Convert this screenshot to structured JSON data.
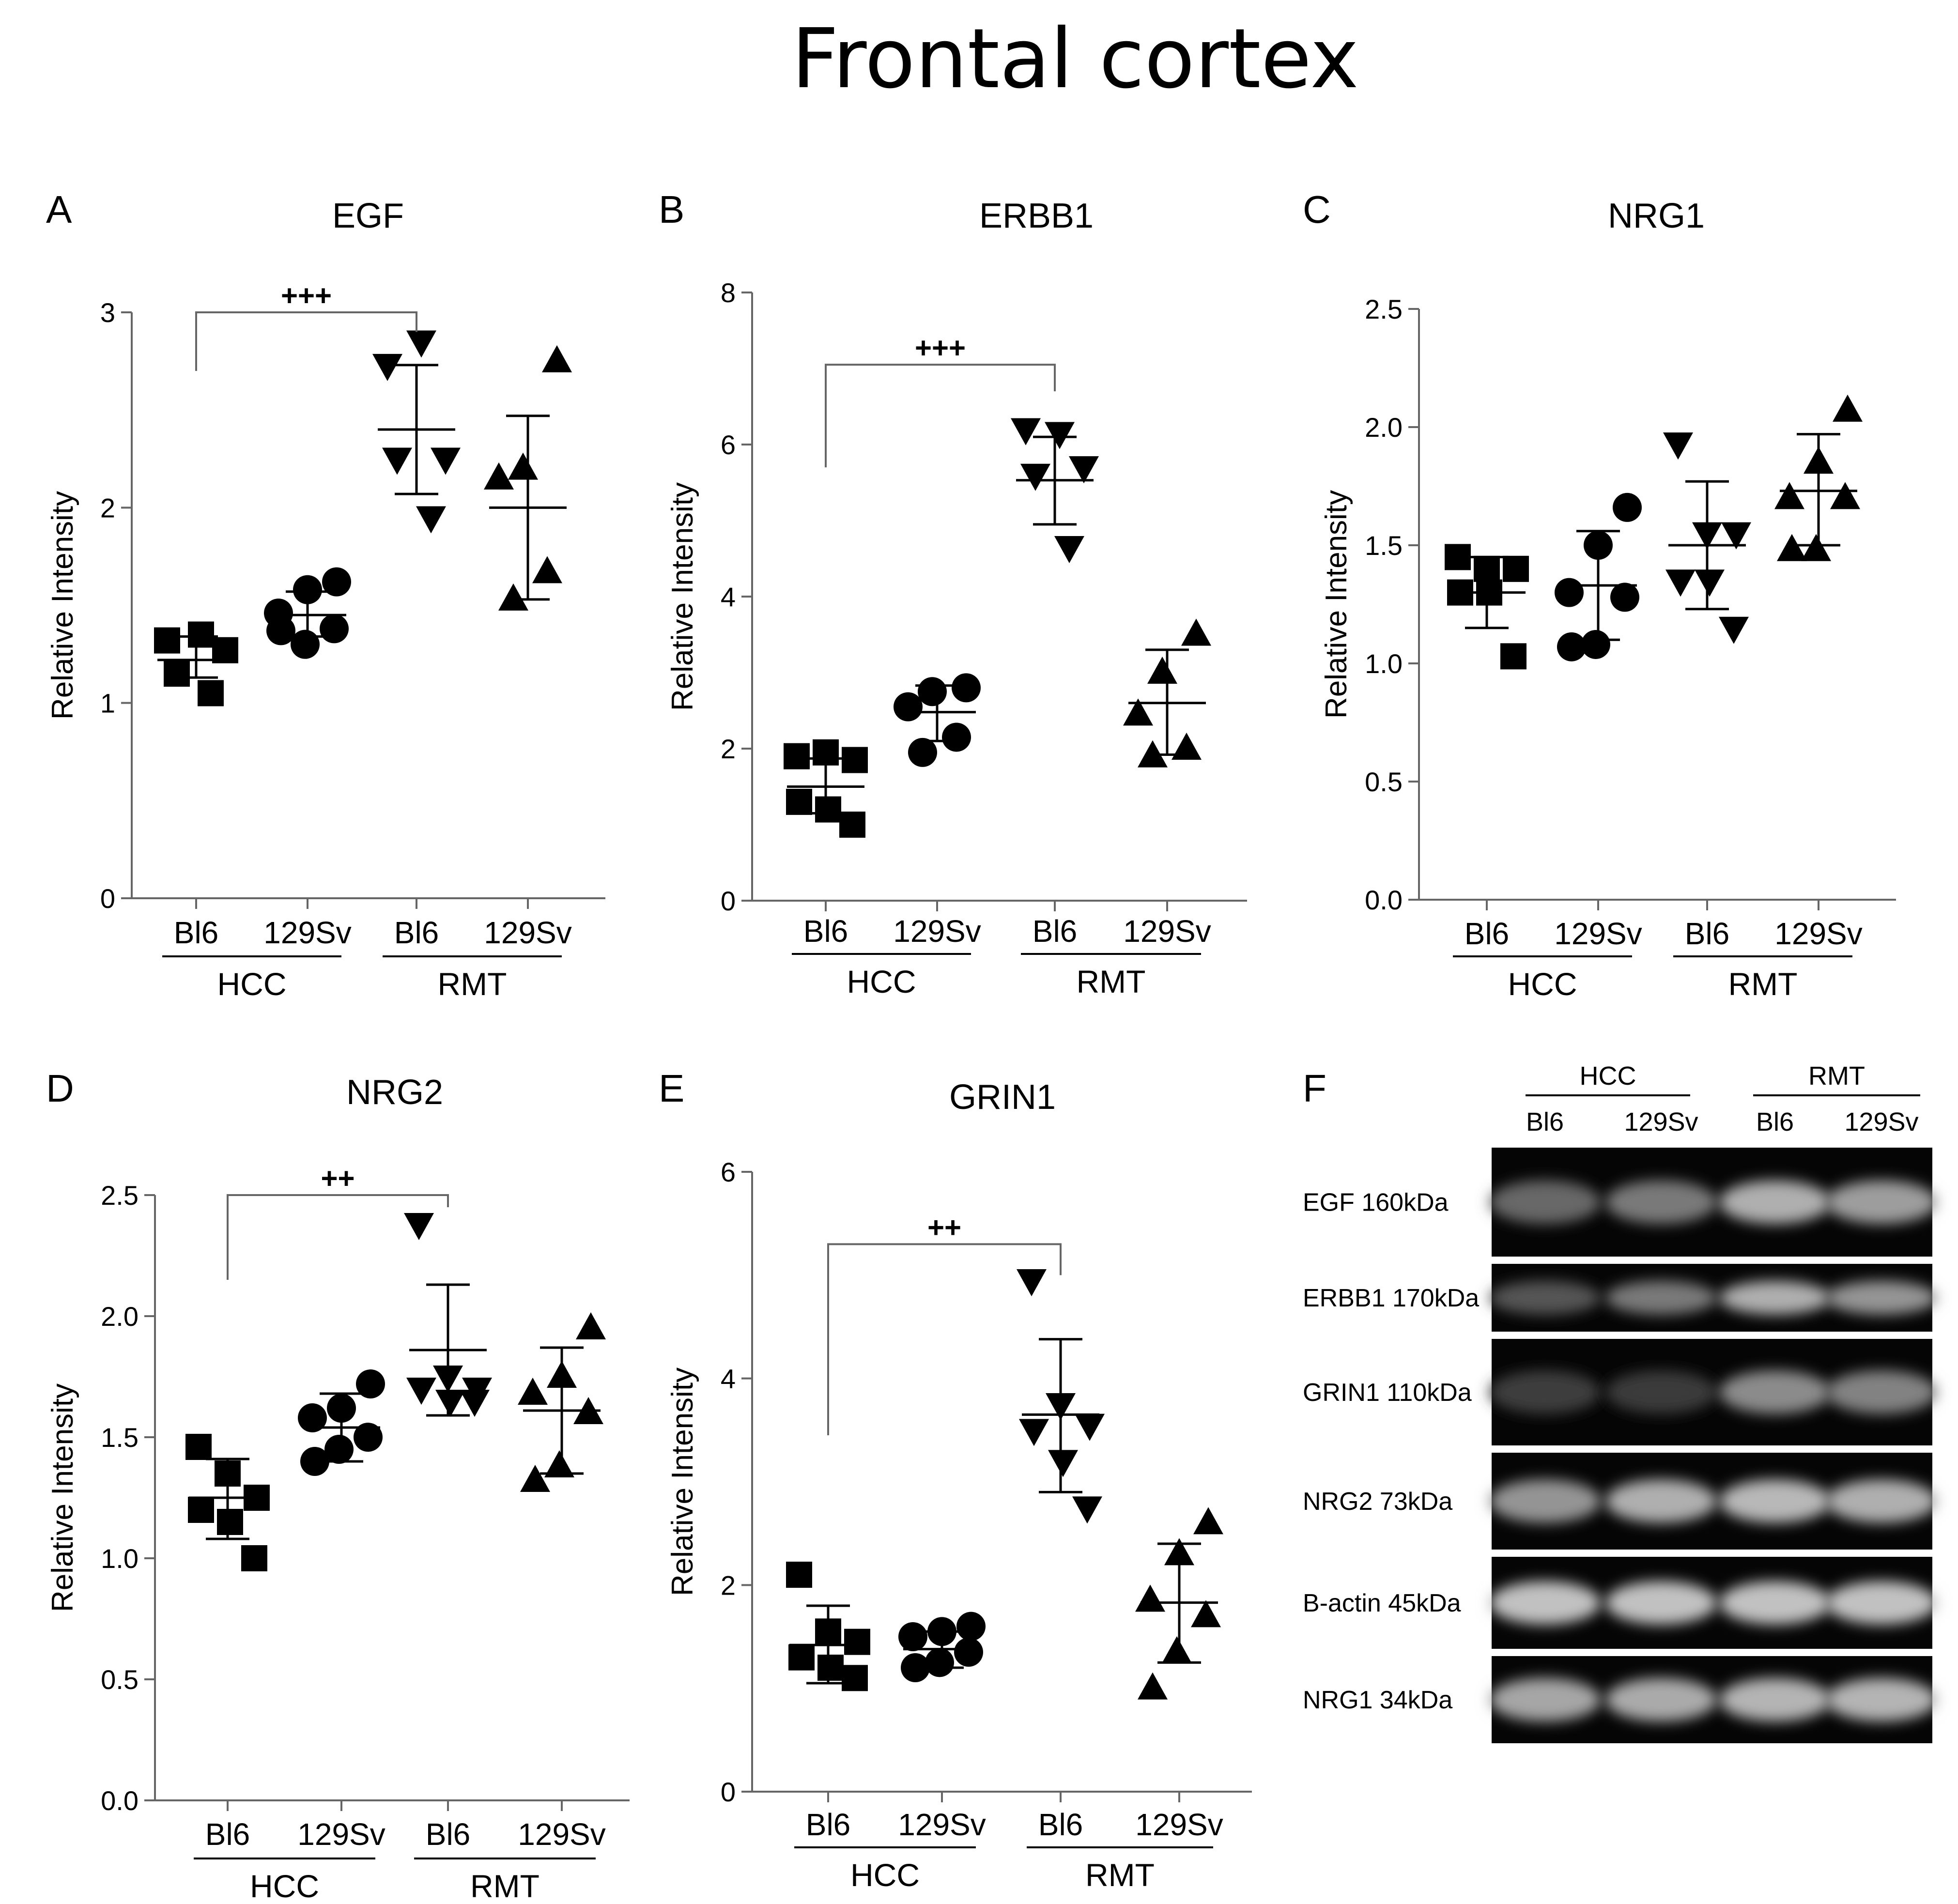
{
  "title": "Frontal cortex",
  "chart_data": [
    {
      "id": "A",
      "letter": "A",
      "type": "scatter",
      "title": "EGF",
      "ylabel": "Relative Intensity",
      "ylim": [
        0,
        3
      ],
      "yticks": [
        0,
        1,
        2,
        3
      ],
      "tick_decimals": 0,
      "categories": [
        "Bl6",
        "129Sv",
        "Bl6",
        "129Sv"
      ],
      "groups": [
        "HCC",
        "RMT"
      ],
      "markers": [
        "square",
        "circle",
        "triangle-down",
        "triangle-up"
      ],
      "points": [
        [
          1.32,
          1.35,
          1.27,
          1.15,
          1.05
        ],
        [
          1.62,
          1.58,
          1.46,
          1.38,
          1.3,
          1.37
        ],
        [
          2.73,
          2.85,
          2.25,
          2.25,
          1.95
        ],
        [
          2.75,
          2.2,
          2.15,
          1.67,
          1.53
        ]
      ],
      "mean": [
        1.22,
        1.45,
        2.4,
        2.0
      ],
      "sd_low": [
        1.13,
        1.34,
        2.07,
        1.53
      ],
      "sd_high": [
        1.34,
        1.57,
        2.73,
        2.47
      ],
      "significance": {
        "label": "+++",
        "from": 0,
        "to": 2,
        "y_top": 3.0,
        "y_left": 2.7,
        "y_right": 2.9
      }
    },
    {
      "id": "B",
      "letter": "B",
      "type": "scatter",
      "title": "ERBB1",
      "ylabel": "Relative Intensity",
      "ylim": [
        0,
        8
      ],
      "yticks": [
        0,
        2,
        4,
        6,
        8
      ],
      "tick_decimals": 0,
      "categories": [
        "Bl6",
        "129Sv",
        "Bl6",
        "129Sv"
      ],
      "groups": [
        "HCC",
        "RMT"
      ],
      "markers": [
        "square",
        "circle",
        "triangle-down",
        "triangle-up"
      ],
      "points": [
        [
          1.9,
          1.95,
          1.85,
          1.3,
          1.2,
          1.0
        ],
        [
          2.8,
          2.75,
          2.55,
          2.15,
          1.95
        ],
        [
          6.2,
          6.15,
          5.7,
          5.6,
          4.65
        ],
        [
          3.5,
          3.0,
          2.45,
          2.0,
          1.9
        ]
      ],
      "mean": [
        1.5,
        2.48,
        5.53,
        2.6
      ],
      "sd_low": [
        1.15,
        2.1,
        4.95,
        1.92
      ],
      "sd_high": [
        1.87,
        2.83,
        6.1,
        3.3
      ],
      "significance": {
        "label": "+++",
        "from": 0,
        "to": 2,
        "y_top": 7.05,
        "y_left": 5.7,
        "y_right": 6.7
      }
    },
    {
      "id": "C",
      "letter": "C",
      "type": "scatter",
      "title": "NRG1",
      "ylabel": "Relative Intensity",
      "ylim": [
        0,
        2.5
      ],
      "yticks": [
        0,
        0.5,
        1.0,
        1.5,
        2.0,
        2.5
      ],
      "tick_decimals": 1,
      "categories": [
        "Bl6",
        "129Sv",
        "Bl6",
        "129Sv"
      ],
      "groups": [
        "HCC",
        "RMT"
      ],
      "markers": [
        "square",
        "circle",
        "triangle-down",
        "triangle-up"
      ],
      "points": [
        [
          1.45,
          1.4,
          1.4,
          1.3,
          1.3,
          1.03
        ],
        [
          1.66,
          1.5,
          1.3,
          1.28,
          1.08,
          1.07
        ],
        [
          1.93,
          1.55,
          1.55,
          1.35,
          1.35,
          1.15
        ],
        [
          2.07,
          1.85,
          1.7,
          1.7,
          1.48,
          1.48
        ]
      ],
      "mean": [
        1.3,
        1.33,
        1.5,
        1.73
      ],
      "sd_low": [
        1.15,
        1.1,
        1.23,
        1.5
      ],
      "sd_high": [
        1.45,
        1.56,
        1.77,
        1.97
      ],
      "significance": null
    },
    {
      "id": "D",
      "letter": "D",
      "type": "scatter",
      "title": "NRG2",
      "ylabel": "Relative Intensity",
      "ylim": [
        0,
        2.5
      ],
      "yticks": [
        0,
        0.5,
        1.0,
        1.5,
        2.0,
        2.5
      ],
      "tick_decimals": 1,
      "categories": [
        "Bl6",
        "129Sv",
        "Bl6",
        "129Sv"
      ],
      "groups": [
        "HCC",
        "RMT"
      ],
      "markers": [
        "square",
        "circle",
        "triangle-down",
        "triangle-up"
      ],
      "points": [
        [
          1.46,
          1.35,
          1.25,
          1.2,
          1.15,
          1.0
        ],
        [
          1.72,
          1.62,
          1.58,
          1.5,
          1.45,
          1.4
        ],
        [
          2.38,
          1.75,
          1.7,
          1.7,
          1.65,
          1.65
        ],
        [
          1.95,
          1.75,
          1.68,
          1.6,
          1.38,
          1.32
        ]
      ],
      "mean": [
        1.25,
        1.54,
        1.86,
        1.61
      ],
      "sd_low": [
        1.08,
        1.4,
        1.59,
        1.35
      ],
      "sd_high": [
        1.41,
        1.68,
        2.13,
        1.87
      ],
      "significance": {
        "label": "++",
        "from": 0,
        "to": 2,
        "y_top": 2.5,
        "y_left": 2.15,
        "y_right": 2.45
      }
    },
    {
      "id": "E",
      "letter": "E",
      "type": "scatter",
      "title": "GRIN1",
      "ylabel": "Relative Intensity",
      "ylim": [
        0,
        6
      ],
      "yticks": [
        0,
        2,
        4,
        6
      ],
      "tick_decimals": 0,
      "categories": [
        "Bl6",
        "129Sv",
        "Bl6",
        "129Sv"
      ],
      "groups": [
        "HCC",
        "RMT"
      ],
      "markers": [
        "square",
        "circle",
        "triangle-down",
        "triangle-up"
      ],
      "points": [
        [
          2.1,
          1.55,
          1.45,
          1.3,
          1.2,
          1.1
        ],
        [
          1.6,
          1.55,
          1.5,
          1.35,
          1.25,
          1.2
        ],
        [
          4.95,
          3.75,
          3.55,
          3.5,
          3.2,
          2.75
        ],
        [
          2.6,
          2.3,
          1.85,
          1.7,
          1.35,
          1.0
        ]
      ],
      "mean": [
        1.42,
        1.38,
        3.65,
        1.83
      ],
      "sd_low": [
        1.05,
        1.2,
        2.9,
        1.25
      ],
      "sd_high": [
        1.8,
        1.55,
        4.38,
        2.4
      ],
      "significance": {
        "label": "++",
        "from": 0,
        "to": 2,
        "y_top": 5.3,
        "y_left": 3.45,
        "y_right": 5.0
      }
    }
  ],
  "blot": {
    "letter": "F",
    "groups": [
      "HCC",
      "RMT"
    ],
    "lanes": [
      "Bl6",
      "129Sv",
      "Bl6",
      "129Sv"
    ],
    "rows": [
      {
        "label": "EGF 160kDa",
        "band": [
          0.35,
          0.45,
          0.75,
          0.65
        ]
      },
      {
        "label": "ERBB1 170kDa",
        "band": [
          0.25,
          0.45,
          0.75,
          0.6
        ]
      },
      {
        "label": "GRIN1 110kDa",
        "band": [
          0.12,
          0.1,
          0.55,
          0.5
        ]
      },
      {
        "label": "NRG2 73kDa",
        "band": [
          0.6,
          0.75,
          0.8,
          0.75
        ]
      },
      {
        "label": "B-actin 45kDa",
        "band": [
          0.85,
          0.85,
          0.85,
          0.85
        ]
      },
      {
        "label": "NRG1 34kDa",
        "band": [
          0.7,
          0.72,
          0.78,
          0.78
        ]
      }
    ]
  }
}
